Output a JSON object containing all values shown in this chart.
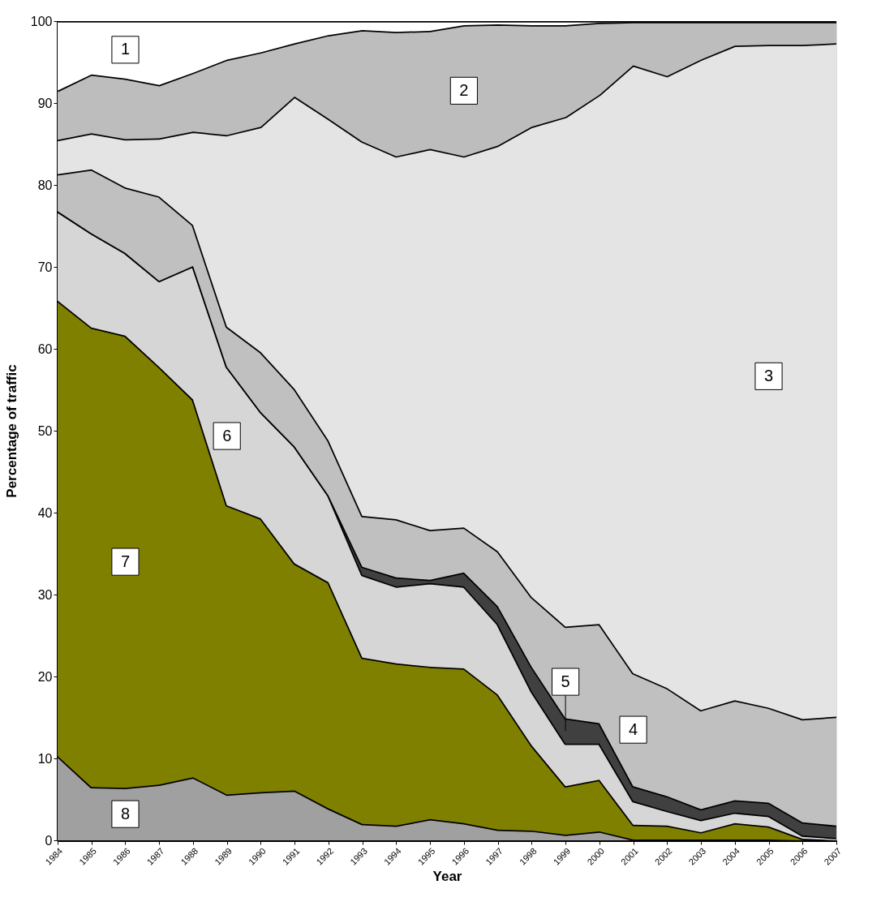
{
  "chart_data": {
    "type": "area",
    "stacked": true,
    "xlabel": "Year",
    "ylabel": "Percentage of traffic",
    "categories": [
      "1984",
      "1985",
      "1986",
      "1987",
      "1988",
      "1989",
      "1990",
      "1991",
      "1992",
      "1993",
      "1994",
      "1995",
      "1996",
      "1997",
      "1998",
      "1999",
      "2000",
      "2001",
      "2002",
      "2003",
      "2004",
      "2005",
      "2006",
      "2007"
    ],
    "ylim": [
      0,
      100
    ],
    "yticks": [
      0,
      10,
      20,
      30,
      40,
      50,
      60,
      70,
      80,
      90,
      100
    ],
    "grid": false,
    "series": [
      {
        "name": "8",
        "color": "#a0a0a0",
        "values": [
          10.3,
          6.5,
          6.4,
          6.8,
          7.7,
          5.6,
          5.9,
          6.1,
          3.9,
          2.0,
          1.8,
          2.6,
          2.1,
          1.3,
          1.2,
          0.7,
          1.1,
          0.1,
          0.1,
          0.1,
          0.1,
          0.1,
          0.0,
          0.0
        ]
      },
      {
        "name": "7",
        "color": "#808000",
        "values": [
          55.6,
          56.1,
          55.2,
          51.0,
          46.1,
          35.3,
          33.4,
          27.7,
          27.6,
          20.3,
          19.8,
          18.6,
          18.9,
          16.5,
          10.4,
          5.9,
          6.3,
          1.8,
          1.7,
          0.9,
          2.0,
          1.6,
          0.2,
          0.0
        ]
      },
      {
        "name": "6",
        "color": "#d6d6d6",
        "values": [
          10.9,
          11.5,
          10.1,
          10.5,
          16.3,
          16.9,
          13.0,
          14.3,
          10.6,
          10.1,
          9.4,
          10.2,
          10.0,
          8.6,
          6.6,
          5.2,
          4.4,
          2.9,
          1.8,
          1.5,
          1.3,
          1.3,
          0.4,
          0.3
        ]
      },
      {
        "name": "5",
        "color": "#404040",
        "values": [
          0,
          0,
          0,
          0,
          0,
          0,
          0,
          0,
          0,
          1.0,
          1.1,
          0.4,
          1.7,
          2.2,
          3.0,
          3.1,
          2.5,
          1.8,
          1.8,
          1.3,
          1.5,
          1.6,
          1.6,
          1.5
        ]
      },
      {
        "name": "4",
        "color": "#c0c0c0",
        "values": [
          4.5,
          7.8,
          8.0,
          10.3,
          5.0,
          4.9,
          7.3,
          7.0,
          6.7,
          6.2,
          7.1,
          6.1,
          5.5,
          6.7,
          8.5,
          11.2,
          12.1,
          13.8,
          13.2,
          12.1,
          12.2,
          11.6,
          12.6,
          13.3
        ]
      },
      {
        "name": "3",
        "color": "#e4e4e4",
        "values": [
          4.2,
          4.4,
          5.9,
          7.1,
          11.4,
          23.4,
          27.5,
          35.7,
          39.3,
          45.7,
          44.3,
          46.5,
          45.3,
          49.5,
          57.4,
          62.2,
          64.6,
          74.2,
          74.7,
          79.4,
          79.9,
          80.9,
          82.3,
          82.2
        ]
      },
      {
        "name": "2",
        "color": "#bdbdbd",
        "values": [
          6.0,
          7.2,
          7.4,
          6.5,
          7.2,
          9.2,
          9.1,
          6.5,
          10.2,
          13.6,
          15.2,
          14.4,
          16.0,
          14.8,
          12.4,
          11.2,
          8.8,
          5.3,
          6.6,
          4.6,
          2.9,
          2.8,
          2.8,
          2.6
        ]
      },
      {
        "name": "1",
        "color": "#ffffff",
        "values": [
          8.5,
          6.5,
          7.0,
          7.8,
          6.3,
          4.7,
          3.8,
          2.7,
          1.7,
          1.1,
          1.3,
          1.2,
          0.5,
          0.4,
          0.5,
          0.5,
          0.2,
          0.1,
          0.1,
          0.1,
          0.1,
          0.1,
          0.1,
          0.1
        ]
      }
    ]
  }
}
